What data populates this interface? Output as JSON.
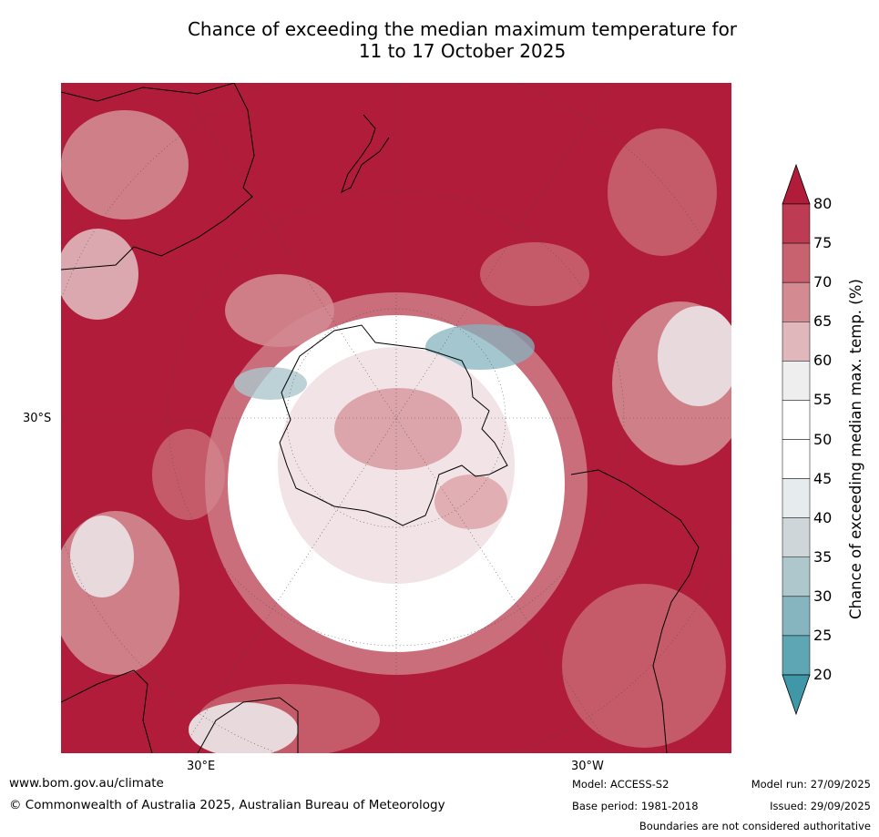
{
  "title": {
    "line1": "Chance of exceeding the median maximum temperature for",
    "line2": "11 to 17 October 2025"
  },
  "axes": {
    "lat_label": "30°S",
    "lon_label_left": "30°E",
    "lon_label_right": "30°W"
  },
  "colorbar": {
    "label": "Chance of exceeding median max. temp. (%)",
    "ticks": [
      "80",
      "75",
      "70",
      "65",
      "60",
      "55",
      "50",
      "45",
      "40",
      "35",
      "30",
      "25",
      "20"
    ],
    "colors": [
      "#b01c3a",
      "#bd3b53",
      "#c8626f",
      "#d38a91",
      "#e0b8bc",
      "#eeeeee",
      "#ffffff",
      "#ffffff",
      "#e6eced",
      "#cfd6d9",
      "#adc7cd",
      "#86b4bf",
      "#5ea6b3",
      "#3f97a8"
    ]
  },
  "footer": {
    "website": "www.bom.gov.au/climate",
    "copyright": "© Commonwealth of Australia 2025, Australian Bureau of Meteorology",
    "model": "Model: ACCESS-S2",
    "base_period": "Base period: 1981-2018",
    "model_run": "Model run: 27/09/2025",
    "issued": "Issued: 29/09/2025",
    "disclaimer": "Boundaries are not considered authoritative"
  }
}
